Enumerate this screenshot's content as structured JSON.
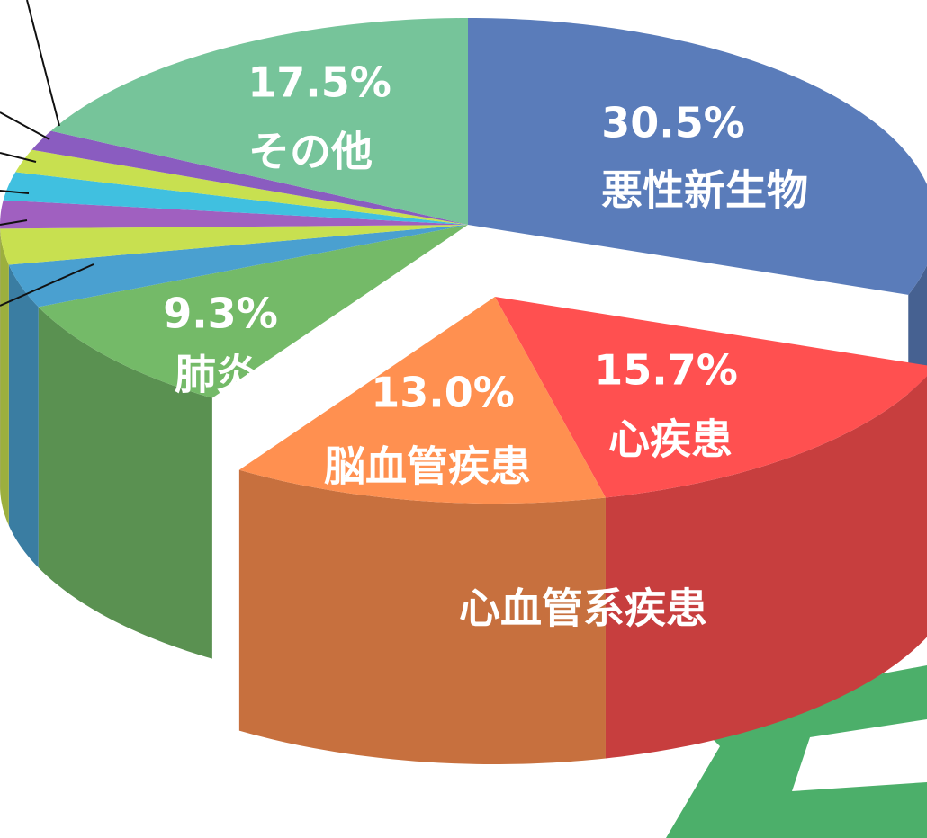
{
  "chart_data": {
    "type": "pie3d",
    "categories": [
      "悪性新生物",
      "心疾患",
      "脳血管疾患",
      "肺炎",
      null,
      null,
      null,
      null,
      null,
      null,
      "その他"
    ],
    "values": [
      30.5,
      15.7,
      13.0,
      9.3,
      3.4,
      2.8,
      2.2,
      2.2,
      1.8,
      1.6,
      17.5
    ],
    "value_labels": [
      "30.5%",
      "15.7%",
      "13.0%",
      "9.3%",
      null,
      null,
      null,
      null,
      null,
      null,
      "17.5%"
    ],
    "colors": [
      "#5a7cba",
      "#ff5050",
      "#ff9050",
      "#74ba68",
      "#4aa0d0",
      "#c8e050",
      "#a060c0",
      "#40c0e0",
      "#c8e050",
      "#8a5cc0",
      "#76c49a"
    ],
    "exploded": [
      1,
      2
    ],
    "annotations": [
      {
        "text": "心血管系疾患"
      }
    ]
  }
}
